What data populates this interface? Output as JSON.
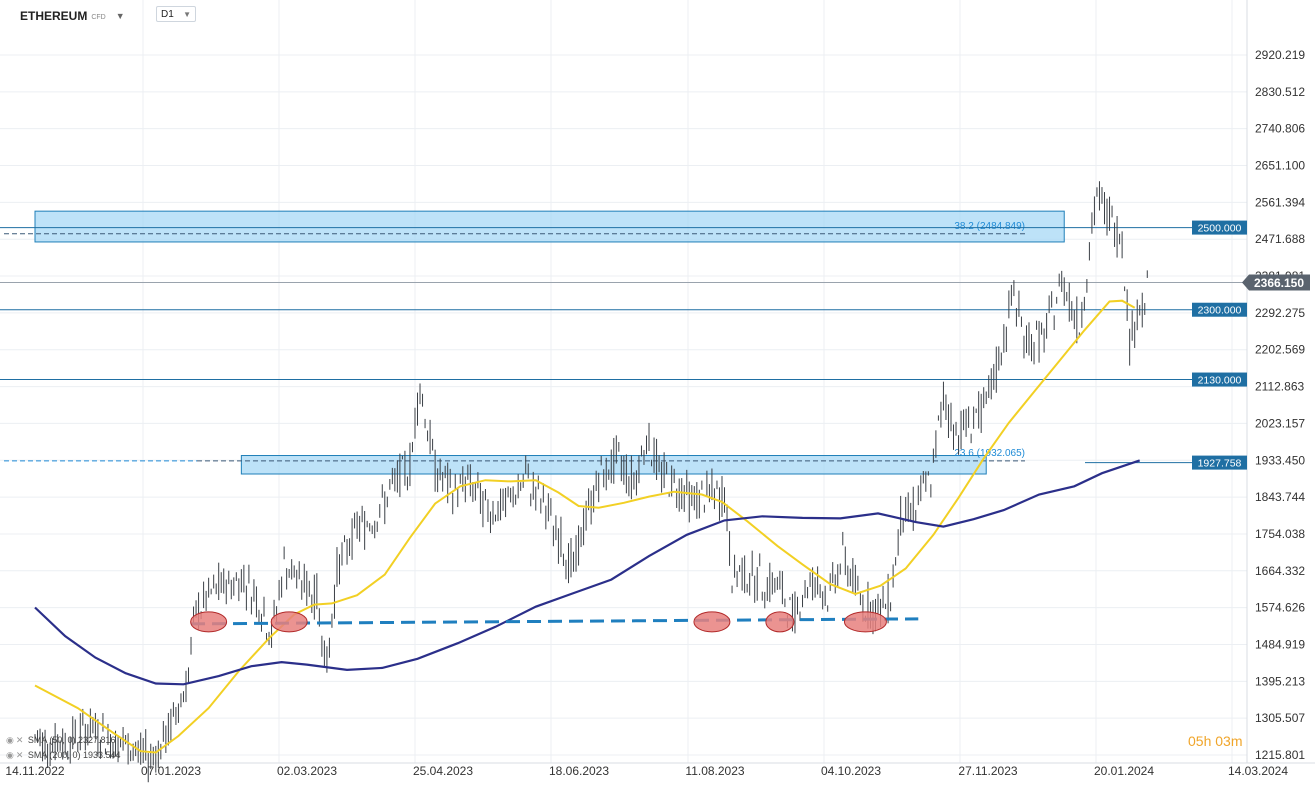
{
  "header": {
    "symbol": "ETHEREUM",
    "instrument_type": "CFD",
    "timeframe": "D1"
  },
  "timer": "05h 03m",
  "legend": [
    {
      "label": "SMA (50, 0) 2327.816",
      "color": "#f2d024"
    },
    {
      "label": "SMA (200, 0) 1933.544",
      "color": "#2b2f8a"
    }
  ],
  "chart_data": {
    "type": "line",
    "title": "",
    "xlabel": "",
    "ylabel": "",
    "x_ticks": [
      "14.11.2022",
      "07.01.2023",
      "02.03.2023",
      "25.04.2023",
      "18.06.2023",
      "11.08.2023",
      "04.10.2023",
      "27.11.2023",
      "20.01.2024",
      "14.03.2024"
    ],
    "y_ticks": [
      "2920.219",
      "2830.512",
      "2740.806",
      "2651.100",
      "2561.394",
      "2471.688",
      "2381.981",
      "2292.275",
      "2202.569",
      "2112.863",
      "2023.157",
      "1933.450",
      "1843.744",
      "1754.038",
      "1664.332",
      "1574.626",
      "1484.919",
      "1395.213",
      "1305.507",
      "1215.801"
    ],
    "ylim": [
      1215.801,
      2920.219
    ],
    "last_price": "2366.150",
    "horizontal_levels": [
      {
        "value": 2500.0,
        "label": "2500.000"
      },
      {
        "value": 2300.0,
        "label": "2300.000"
      },
      {
        "value": 2130.0,
        "label": "2130.000"
      },
      {
        "value": 1927.758,
        "label": "1927.758"
      }
    ],
    "fibonacci": [
      {
        "label": "38.2 (2484.849)",
        "value": 2484.849
      },
      {
        "label": "23.6 (1932.065)",
        "value": 1932.065
      }
    ],
    "support_line_value": 1540,
    "support_touch_dates": [
      "2023-01-22",
      "2023-02-23",
      "2023-08-10",
      "2023-09-06",
      "2023-10-10"
    ],
    "zones": [
      {
        "from": 2465,
        "to": 2540,
        "start": "2022-11-14",
        "end": "2023-12-28"
      },
      {
        "from": 1900,
        "to": 1945,
        "start": "2023-02-04",
        "end": "2023-11-27"
      }
    ],
    "series": [
      {
        "name": "SMA (50, 0)",
        "color": "#f2d024",
        "points": [
          [
            "2022-11-14",
            1385
          ],
          [
            "2022-12-01",
            1330
          ],
          [
            "2022-12-15",
            1270
          ],
          [
            "2022-12-26",
            1225
          ],
          [
            "2023-01-01",
            1222
          ],
          [
            "2023-01-10",
            1262
          ],
          [
            "2023-01-22",
            1330
          ],
          [
            "2023-02-03",
            1420
          ],
          [
            "2023-02-15",
            1500
          ],
          [
            "2023-02-25",
            1558
          ],
          [
            "2023-03-05",
            1582
          ],
          [
            "2023-03-12",
            1585
          ],
          [
            "2023-03-22",
            1605
          ],
          [
            "2023-04-02",
            1655
          ],
          [
            "2023-04-12",
            1745
          ],
          [
            "2023-04-22",
            1828
          ],
          [
            "2023-05-02",
            1870
          ],
          [
            "2023-05-12",
            1885
          ],
          [
            "2023-05-22",
            1882
          ],
          [
            "2023-06-01",
            1885
          ],
          [
            "2023-06-10",
            1855
          ],
          [
            "2023-06-18",
            1822
          ],
          [
            "2023-06-26",
            1818
          ],
          [
            "2023-07-06",
            1830
          ],
          [
            "2023-07-16",
            1845
          ],
          [
            "2023-07-26",
            1857
          ],
          [
            "2023-08-06",
            1850
          ],
          [
            "2023-08-14",
            1832
          ],
          [
            "2023-08-24",
            1785
          ],
          [
            "2023-09-05",
            1725
          ],
          [
            "2023-09-15",
            1680
          ],
          [
            "2023-09-26",
            1632
          ],
          [
            "2023-10-06",
            1608
          ],
          [
            "2023-10-16",
            1628
          ],
          [
            "2023-10-26",
            1670
          ],
          [
            "2023-11-06",
            1752
          ],
          [
            "2023-11-16",
            1842
          ],
          [
            "2023-11-26",
            1938
          ],
          [
            "2023-12-06",
            2025
          ],
          [
            "2023-12-16",
            2100
          ],
          [
            "2023-12-26",
            2175
          ],
          [
            "2024-01-05",
            2250
          ],
          [
            "2024-01-15",
            2320
          ],
          [
            "2024-01-20",
            2322
          ],
          [
            "2024-01-25",
            2305
          ]
        ]
      },
      {
        "name": "SMA (200, 0)",
        "color": "#2b2f8a",
        "points": [
          [
            "2022-11-14",
            1575
          ],
          [
            "2022-11-26",
            1505
          ],
          [
            "2022-12-08",
            1453
          ],
          [
            "2022-12-20",
            1415
          ],
          [
            "2023-01-01",
            1390
          ],
          [
            "2023-01-12",
            1388
          ],
          [
            "2023-01-26",
            1408
          ],
          [
            "2023-02-08",
            1432
          ],
          [
            "2023-02-20",
            1442
          ],
          [
            "2023-03-02",
            1436
          ],
          [
            "2023-03-18",
            1423
          ],
          [
            "2023-04-01",
            1428
          ],
          [
            "2023-04-15",
            1450
          ],
          [
            "2023-05-01",
            1488
          ],
          [
            "2023-05-16",
            1528
          ],
          [
            "2023-06-01",
            1577
          ],
          [
            "2023-06-16",
            1610
          ],
          [
            "2023-07-01",
            1643
          ],
          [
            "2023-07-16",
            1700
          ],
          [
            "2023-07-31",
            1752
          ],
          [
            "2023-08-15",
            1787
          ],
          [
            "2023-08-30",
            1797
          ],
          [
            "2023-09-15",
            1793
          ],
          [
            "2023-09-30",
            1792
          ],
          [
            "2023-10-15",
            1804
          ],
          [
            "2023-10-30",
            1783
          ],
          [
            "2023-11-10",
            1772
          ],
          [
            "2023-11-22",
            1790
          ],
          [
            "2023-12-04",
            1812
          ],
          [
            "2023-12-18",
            1850
          ],
          [
            "2024-01-01",
            1870
          ],
          [
            "2024-01-12",
            1902
          ],
          [
            "2024-01-27",
            1933
          ]
        ]
      },
      {
        "name": "price",
        "color": "#333333",
        "points": [
          [
            "2022-11-14",
            1255
          ],
          [
            "2022-11-25",
            1240
          ],
          [
            "2022-12-05",
            1282
          ],
          [
            "2022-12-15",
            1252
          ],
          [
            "2022-12-25",
            1220
          ],
          [
            "2022-12-30",
            1210
          ],
          [
            "2023-01-05",
            1255
          ],
          [
            "2023-01-10",
            1338
          ],
          [
            "2023-01-14",
            1420
          ],
          [
            "2023-01-17",
            1560
          ],
          [
            "2023-01-25",
            1620
          ],
          [
            "2023-02-04",
            1650
          ],
          [
            "2023-02-10",
            1600
          ],
          [
            "2023-02-16",
            1505
          ],
          [
            "2023-02-21",
            1680
          ],
          [
            "2023-02-27",
            1640
          ],
          [
            "2023-03-06",
            1600
          ],
          [
            "2023-03-10",
            1435
          ],
          [
            "2023-03-14",
            1665
          ],
          [
            "2023-03-22",
            1770
          ],
          [
            "2023-03-30",
            1800
          ],
          [
            "2023-04-05",
            1865
          ],
          [
            "2023-04-12",
            1925
          ],
          [
            "2023-04-16",
            2115
          ],
          [
            "2023-04-22",
            1915
          ],
          [
            "2023-04-28",
            1855
          ],
          [
            "2023-05-05",
            1885
          ],
          [
            "2023-05-12",
            1815
          ],
          [
            "2023-05-20",
            1820
          ],
          [
            "2023-05-28",
            1890
          ],
          [
            "2023-06-05",
            1815
          ],
          [
            "2023-06-10",
            1745
          ],
          [
            "2023-06-16",
            1665
          ],
          [
            "2023-06-20",
            1775
          ],
          [
            "2023-06-26",
            1890
          ],
          [
            "2023-07-04",
            1935
          ],
          [
            "2023-07-10",
            1880
          ],
          [
            "2023-07-15",
            1995
          ],
          [
            "2023-07-20",
            1910
          ],
          [
            "2023-07-27",
            1870
          ],
          [
            "2023-08-03",
            1835
          ],
          [
            "2023-08-10",
            1850
          ],
          [
            "2023-08-15",
            1845
          ],
          [
            "2023-08-18",
            1655
          ],
          [
            "2023-08-25",
            1655
          ],
          [
            "2023-09-01",
            1635
          ],
          [
            "2023-09-05",
            1630
          ],
          [
            "2023-09-11",
            1555
          ],
          [
            "2023-09-18",
            1640
          ],
          [
            "2023-09-25",
            1600
          ],
          [
            "2023-10-01",
            1700
          ],
          [
            "2023-10-10",
            1580
          ],
          [
            "2023-10-15",
            1555
          ],
          [
            "2023-10-20",
            1610
          ],
          [
            "2023-10-24",
            1790
          ],
          [
            "2023-10-30",
            1820
          ],
          [
            "2023-11-05",
            1895
          ],
          [
            "2023-11-10",
            2080
          ],
          [
            "2023-11-15",
            2000
          ],
          [
            "2023-11-22",
            2040
          ],
          [
            "2023-11-27",
            2055
          ],
          [
            "2023-12-03",
            2200
          ],
          [
            "2023-12-08",
            2340
          ],
          [
            "2023-12-13",
            2220
          ],
          [
            "2023-12-20",
            2230
          ],
          [
            "2023-12-27",
            2375
          ],
          [
            "2024-01-03",
            2260
          ],
          [
            "2024-01-10",
            2580
          ],
          [
            "2024-01-12",
            2550
          ],
          [
            "2024-01-15",
            2525
          ],
          [
            "2024-01-20",
            2475
          ],
          [
            "2024-01-23",
            2230
          ],
          [
            "2024-01-27",
            2300
          ],
          [
            "2024-01-31",
            2366
          ]
        ]
      }
    ]
  }
}
